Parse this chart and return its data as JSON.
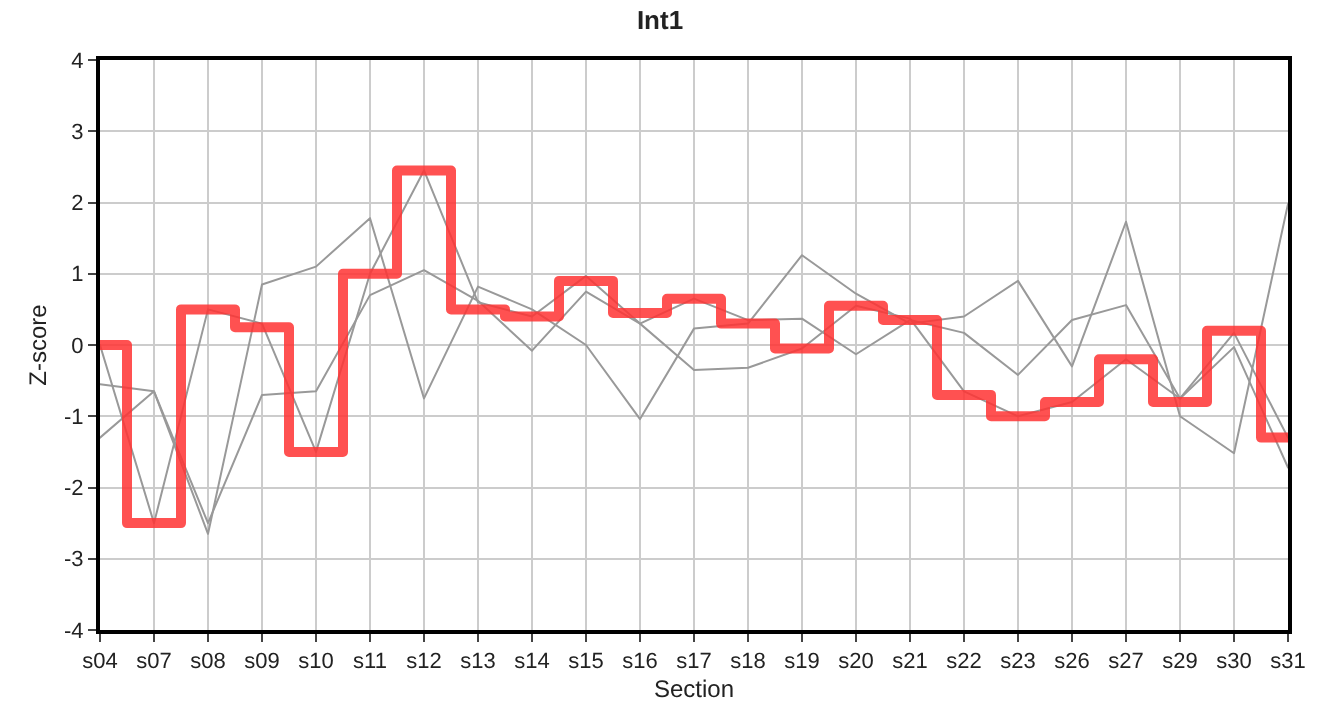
{
  "chart_data": {
    "type": "line",
    "title": "Int1",
    "xlabel": "Section",
    "ylabel": "Z-score",
    "categories": [
      "s04",
      "s07",
      "s08",
      "s09",
      "s10",
      "s11",
      "s12",
      "s13",
      "s14",
      "s15",
      "s16",
      "s17",
      "s18",
      "s19",
      "s20",
      "s21",
      "s22",
      "s23",
      "s26",
      "s27",
      "s29",
      "s30",
      "s31"
    ],
    "ylim": [
      -4,
      4
    ],
    "yticks": [
      -4,
      -3,
      -2,
      -1,
      0,
      1,
      2,
      3,
      4
    ],
    "grid": true,
    "marker": "none",
    "series": [
      {
        "color": "#999999",
        "values": [
          0,
          -2.5,
          0.5,
          0.3,
          -1.5,
          1.0,
          2.45,
          0.6,
          0.4,
          0.97,
          0.3,
          0.65,
          0.35,
          0.37,
          -0.13,
          0.35,
          0.17,
          -0.42,
          0.35,
          0.56,
          -0.75,
          0.17,
          -1.3
        ]
      },
      {
        "color": "#999999",
        "values": [
          -1.3,
          -0.65,
          -2.65,
          0.85,
          1.1,
          1.78,
          -0.75,
          0.82,
          0.5,
          0,
          -1.04,
          0.23,
          0.3,
          1.26,
          0.72,
          0.3,
          0.4,
          0.9,
          -0.3,
          1.73,
          -1.0,
          -1.52,
          1.98
        ]
      },
      {
        "color": "#999999",
        "values": [
          -0.55,
          -0.65,
          -2.5,
          -0.7,
          -0.65,
          0.7,
          1.05,
          0.62,
          -0.08,
          0.75,
          0.3,
          -0.35,
          -0.32,
          -0.05,
          0.55,
          0.37,
          -0.65,
          -1.0,
          -0.8,
          -0.2,
          -0.75,
          -0.03,
          -1.72
        ]
      },
      {
        "type": "step",
        "color": "#ff3333",
        "values": [
          0,
          -2.5,
          0.5,
          0.25,
          -1.5,
          1.0,
          2.45,
          0.5,
          0.4,
          0.9,
          0.45,
          0.65,
          0.3,
          -0.05,
          0.55,
          0.35,
          -0.7,
          -1.0,
          -0.8,
          -0.2,
          -0.8,
          0.2,
          -1.3
        ]
      }
    ]
  }
}
